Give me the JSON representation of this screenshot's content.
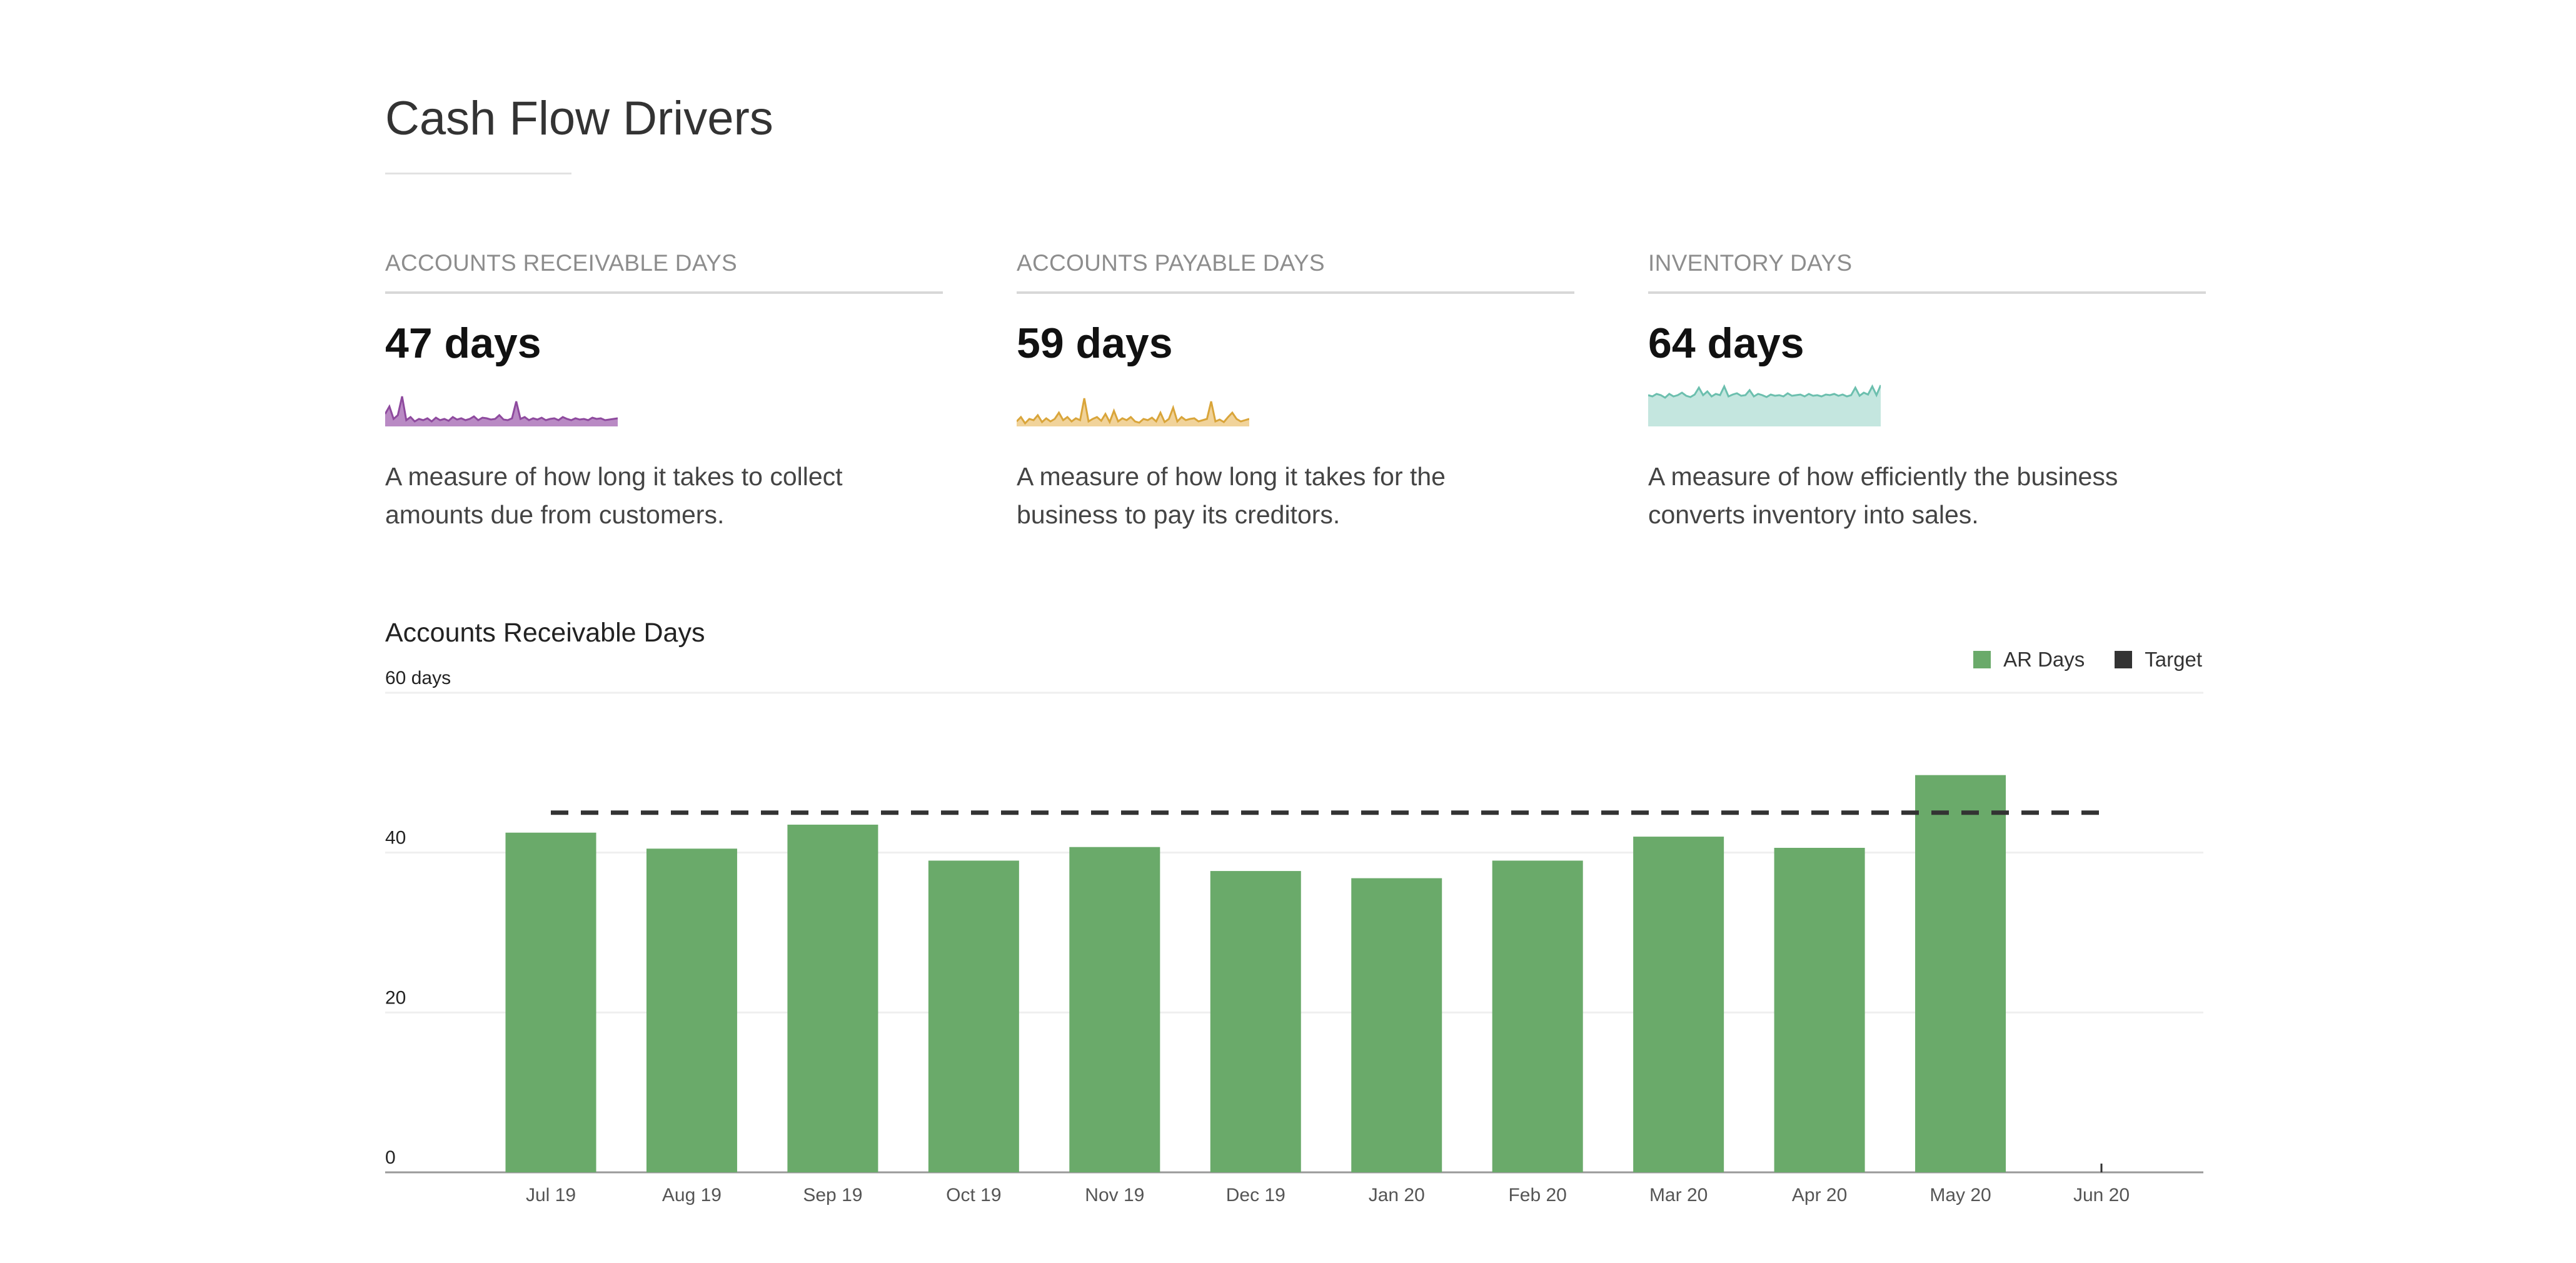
{
  "page": {
    "title": "Cash Flow Drivers"
  },
  "metrics": [
    {
      "label": "ACCOUNTS RECEIVABLE DAYS",
      "value": "47 days",
      "description": "A measure of how long it takes to collect amounts due from customers.",
      "color": "#8e4a9e",
      "fill": "#b98ac4"
    },
    {
      "label": "ACCOUNTS PAYABLE DAYS",
      "value": "59 days",
      "description": "A measure of how long it takes for the business to pay its creditors.",
      "color": "#d9a53a",
      "fill": "#f1d39a"
    },
    {
      "label": "INVENTORY DAYS",
      "value": "64 days",
      "description": "A measure of how efficiently the business converts inventory into sales.",
      "color": "#6cbfae",
      "fill": "#c4e6df"
    }
  ],
  "chart_data": {
    "type": "bar",
    "title": "Accounts Receivable Days",
    "categories": [
      "Jul 19",
      "Aug 19",
      "Sep 19",
      "Oct 19",
      "Nov 19",
      "Dec 19",
      "Jan 20",
      "Feb 20",
      "Mar 20",
      "Apr 20",
      "May 20",
      "Jun 20"
    ],
    "series": [
      {
        "name": "AR Days",
        "values": [
          42.5,
          40.5,
          43.5,
          39,
          40.7,
          37.7,
          36.8,
          39,
          42,
          40.6,
          49.7,
          null
        ],
        "color": "#6aaa6a"
      },
      {
        "name": "Target",
        "values": [
          45,
          45,
          45,
          45,
          45,
          45,
          45,
          45,
          45,
          45,
          45,
          45
        ],
        "color": "#333333",
        "style": "dashed"
      }
    ],
    "yticks": [
      0,
      20,
      40,
      "60 days"
    ],
    "ylim": [
      0,
      60
    ],
    "grid": true,
    "legend": "top-right"
  }
}
